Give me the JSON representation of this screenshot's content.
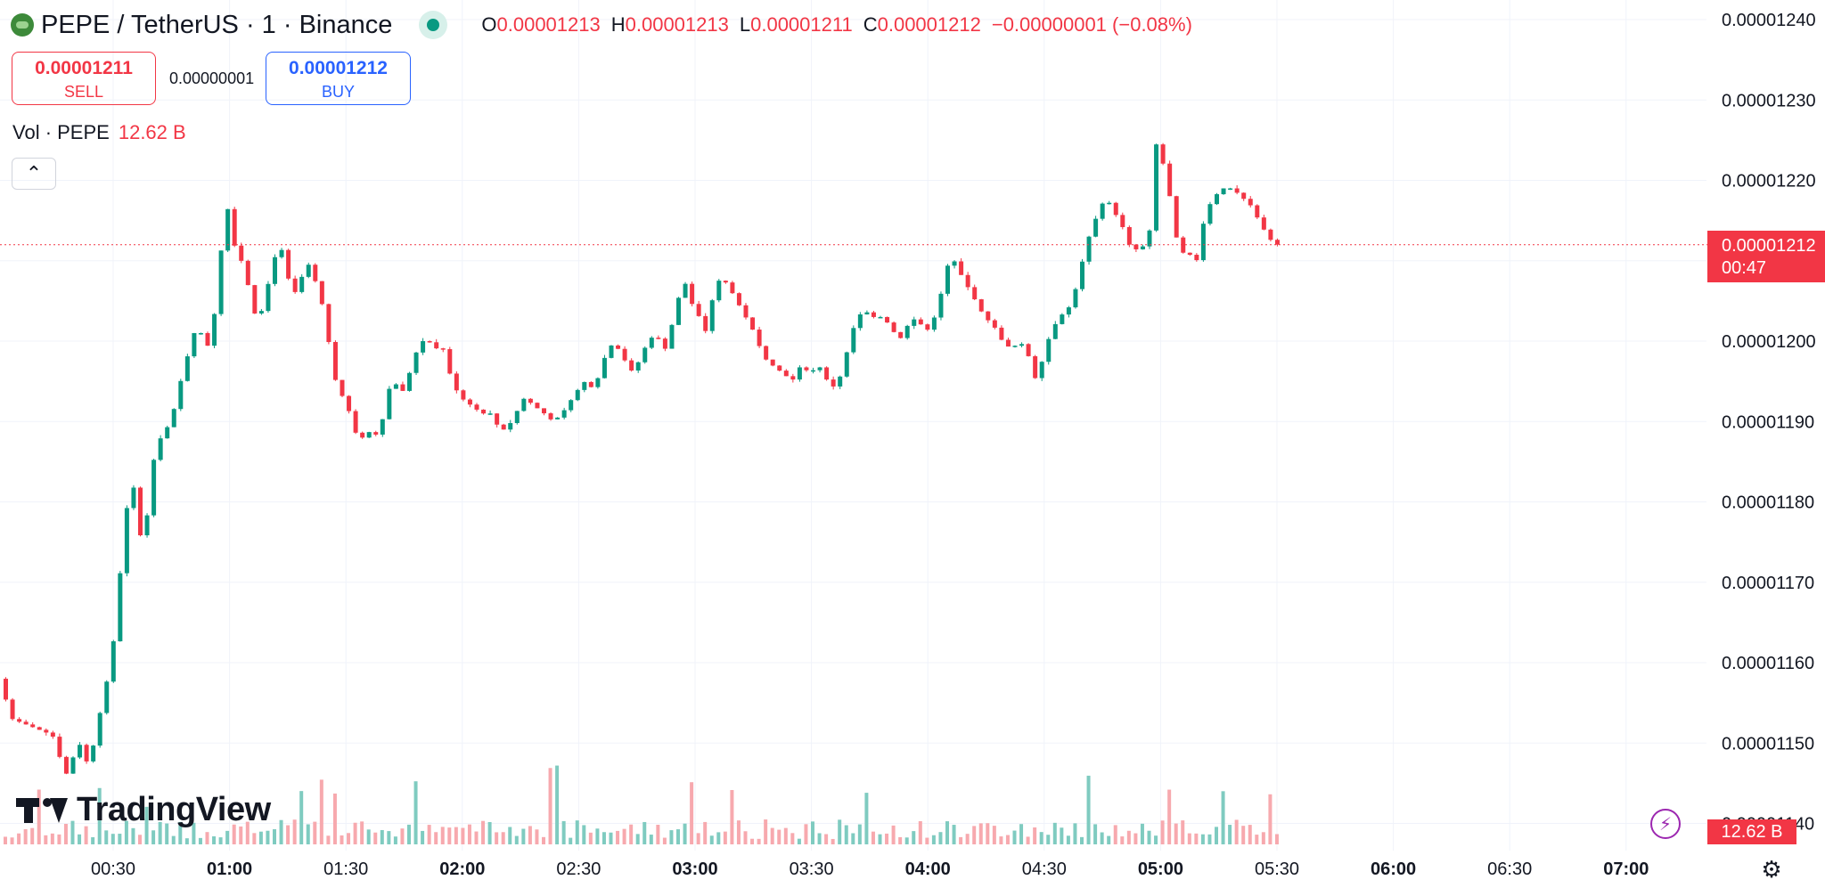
{
  "header": {
    "symbol_title": "PEPE / TetherUS · 1 · Binance",
    "ohlc": [
      {
        "k": "O",
        "v": "0.00001213"
      },
      {
        "k": "H",
        "v": "0.00001213"
      },
      {
        "k": "L",
        "v": "0.00001211"
      },
      {
        "k": "C",
        "v": "0.00001212"
      }
    ],
    "change": "−0.00000001 (−0.08%)",
    "icons": [
      "pepe-coin-logo-icon",
      "market-open-dot-icon"
    ]
  },
  "trade": {
    "sell_price": "0.00001211",
    "sell_label": "SELL",
    "spread": "0.00000001",
    "buy_price": "0.00001212",
    "buy_label": "BUY"
  },
  "volume_legend": {
    "label": "Vol · PEPE",
    "value": "12.62 B"
  },
  "last_price_tag": {
    "price": "0.00001212",
    "countdown": "00:47"
  },
  "volume_tag": "12.62 B",
  "branding": {
    "logo_text": "TradingView"
  },
  "colors": {
    "up": "#089981",
    "down": "#f23645",
    "up_volume": "#7fcbc0",
    "down_volume": "#f7a9ae",
    "grid": "#f0f3fa"
  },
  "chart_data": {
    "type": "candlestick",
    "symbol": "PEPE / TetherUS",
    "interval": "1",
    "exchange": "Binance",
    "y_ticks": [
      "0.00001240",
      "0.00001230",
      "0.00001220",
      "0.00001210",
      "0.00001200",
      "0.00001190",
      "0.00001180",
      "0.00001170",
      "0.00001160",
      "0.00001150",
      "0.00001140"
    ],
    "ylim": [
      1.1395e-05,
      1.2415e-05
    ],
    "x_ticks": [
      {
        "label": "00:30",
        "bold": false
      },
      {
        "label": "01:00",
        "bold": true
      },
      {
        "label": "01:30",
        "bold": false
      },
      {
        "label": "02:00",
        "bold": true
      },
      {
        "label": "02:30",
        "bold": false
      },
      {
        "label": "03:00",
        "bold": true
      },
      {
        "label": "03:30",
        "bold": false
      },
      {
        "label": "04:00",
        "bold": true
      },
      {
        "label": "04:30",
        "bold": false
      },
      {
        "label": "05:00",
        "bold": true
      },
      {
        "label": "05:30",
        "bold": false
      },
      {
        "label": "06:00",
        "bold": true
      },
      {
        "label": "06:30",
        "bold": false
      },
      {
        "label": "07:00",
        "bold": true
      }
    ],
    "last_price": 1.212e-05,
    "price_path": [
      [
        0,
        1.158e-05
      ],
      [
        15,
        1.153e-05
      ],
      [
        60,
        1.151e-05
      ],
      [
        75,
        1.146e-05
      ],
      [
        90,
        1.15e-05
      ],
      [
        101,
        1.147e-05
      ],
      [
        112,
        1.153e-05
      ],
      [
        120,
        1.157e-05
      ],
      [
        128,
        1.162e-05
      ],
      [
        135,
        1.17e-05
      ],
      [
        142,
        1.177e-05
      ],
      [
        148,
        1.185e-05
      ],
      [
        152,
        1.181e-05
      ],
      [
        158,
        1.176e-05
      ],
      [
        163,
        1.175e-05
      ],
      [
        170,
        1.182e-05
      ],
      [
        176,
        1.187e-05
      ],
      [
        188,
        1.189e-05
      ],
      [
        198,
        1.192e-05
      ],
      [
        206,
        1.196e-05
      ],
      [
        214,
        1.199e-05
      ],
      [
        218,
        1.201e-05
      ],
      [
        228,
        1.201e-05
      ],
      [
        236,
        1.199e-05
      ],
      [
        244,
        1.205e-05
      ],
      [
        250,
        1.212e-05
      ],
      [
        256,
        1.217e-05
      ],
      [
        264,
        1.212e-05
      ],
      [
        272,
        1.21e-05
      ],
      [
        282,
        1.206e-05
      ],
      [
        290,
        1.202e-05
      ],
      [
        298,
        1.205e-05
      ],
      [
        308,
        1.21e-05
      ],
      [
        316,
        1.212e-05
      ],
      [
        324,
        1.208e-05
      ],
      [
        332,
        1.206e-05
      ],
      [
        340,
        1.208e-05
      ],
      [
        350,
        1.21e-05
      ],
      [
        356,
        1.207e-05
      ],
      [
        362,
        1.205e-05
      ],
      [
        370,
        1.2e-05
      ],
      [
        378,
        1.195e-05
      ],
      [
        386,
        1.193e-05
      ],
      [
        394,
        1.191e-05
      ],
      [
        402,
        1.188e-05
      ],
      [
        410,
        1.188e-05
      ],
      [
        418,
        1.189e-05
      ],
      [
        426,
        1.188e-05
      ],
      [
        434,
        1.192e-05
      ],
      [
        442,
        1.196e-05
      ],
      [
        450,
        1.193e-05
      ],
      [
        458,
        1.195e-05
      ],
      [
        466,
        1.198e-05
      ],
      [
        474,
        1.2e-05
      ],
      [
        482,
        1.2e-05
      ],
      [
        492,
        1.199e-05
      ],
      [
        500,
        1.199e-05
      ],
      [
        508,
        1.195e-05
      ],
      [
        518,
        1.193e-05
      ],
      [
        530,
        1.192e-05
      ],
      [
        542,
        1.191e-05
      ],
      [
        552,
        1.191e-05
      ],
      [
        562,
        1.189e-05
      ],
      [
        570,
        1.189e-05
      ],
      [
        580,
        1.191e-05
      ],
      [
        590,
        1.193e-05
      ],
      [
        600,
        1.192e-05
      ],
      [
        612,
        1.191e-05
      ],
      [
        622,
        1.19e-05
      ],
      [
        632,
        1.191e-05
      ],
      [
        644,
        1.193e-05
      ],
      [
        656,
        1.195e-05
      ],
      [
        668,
        1.194e-05
      ],
      [
        680,
        1.198e-05
      ],
      [
        690,
        1.2e-05
      ],
      [
        700,
        1.198e-05
      ],
      [
        712,
        1.196e-05
      ],
      [
        724,
        1.199e-05
      ],
      [
        736,
        1.201e-05
      ],
      [
        748,
        1.199e-05
      ],
      [
        760,
        1.204e-05
      ],
      [
        768,
        1.208e-05
      ],
      [
        776,
        1.205e-05
      ],
      [
        786,
        1.203e-05
      ],
      [
        794,
        1.201e-05
      ],
      [
        802,
        1.206e-05
      ],
      [
        810,
        1.208e-05
      ],
      [
        818,
        1.207e-05
      ],
      [
        828,
        1.205e-05
      ],
      [
        838,
        1.203e-05
      ],
      [
        848,
        1.201e-05
      ],
      [
        858,
        1.198e-05
      ],
      [
        868,
        1.197e-05
      ],
      [
        880,
        1.196e-05
      ],
      [
        890,
        1.195e-05
      ],
      [
        900,
        1.197e-05
      ],
      [
        910,
        1.196e-05
      ],
      [
        920,
        1.197e-05
      ],
      [
        930,
        1.195e-05
      ],
      [
        940,
        1.194e-05
      ],
      [
        950,
        1.198e-05
      ],
      [
        960,
        1.202e-05
      ],
      [
        970,
        1.204e-05
      ],
      [
        980,
        1.203e-05
      ],
      [
        990,
        1.203e-05
      ],
      [
        1000,
        1.202e-05
      ],
      [
        1010,
        1.2e-05
      ],
      [
        1020,
        1.202e-05
      ],
      [
        1030,
        1.203e-05
      ],
      [
        1040,
        1.201e-05
      ],
      [
        1050,
        1.203e-05
      ],
      [
        1060,
        1.207e-05
      ],
      [
        1068,
        1.211e-05
      ],
      [
        1076,
        1.209e-05
      ],
      [
        1086,
        1.207e-05
      ],
      [
        1096,
        1.205e-05
      ],
      [
        1106,
        1.203e-05
      ],
      [
        1116,
        1.202e-05
      ],
      [
        1126,
        1.2e-05
      ],
      [
        1136,
        1.199e-05
      ],
      [
        1146,
        1.2e-05
      ],
      [
        1156,
        1.198e-05
      ],
      [
        1164,
        1.195e-05
      ],
      [
        1172,
        1.198e-05
      ],
      [
        1180,
        1.201e-05
      ],
      [
        1190,
        1.203e-05
      ],
      [
        1200,
        1.204e-05
      ],
      [
        1210,
        1.207e-05
      ],
      [
        1218,
        1.211e-05
      ],
      [
        1226,
        1.214e-05
      ],
      [
        1234,
        1.216e-05
      ],
      [
        1242,
        1.218e-05
      ],
      [
        1252,
        1.216e-05
      ],
      [
        1262,
        1.214e-05
      ],
      [
        1272,
        1.211e-05
      ],
      [
        1282,
        1.212e-05
      ],
      [
        1290,
        1.211e-05
      ],
      [
        1296,
        1.224e-05
      ],
      [
        1302,
        1.225e-05
      ],
      [
        1308,
        1.221e-05
      ],
      [
        1316,
        1.217e-05
      ],
      [
        1324,
        1.211e-05
      ],
      [
        1334,
        1.211e-05
      ],
      [
        1344,
        1.21e-05
      ],
      [
        1354,
        1.216e-05
      ],
      [
        1364,
        1.218e-05
      ],
      [
        1374,
        1.219e-05
      ],
      [
        1384,
        1.219e-05
      ],
      [
        1394,
        1.218e-05
      ],
      [
        1404,
        1.217e-05
      ],
      [
        1414,
        1.215e-05
      ],
      [
        1424,
        1.213e-05
      ],
      [
        1432,
        1.212e-05
      ]
    ]
  }
}
